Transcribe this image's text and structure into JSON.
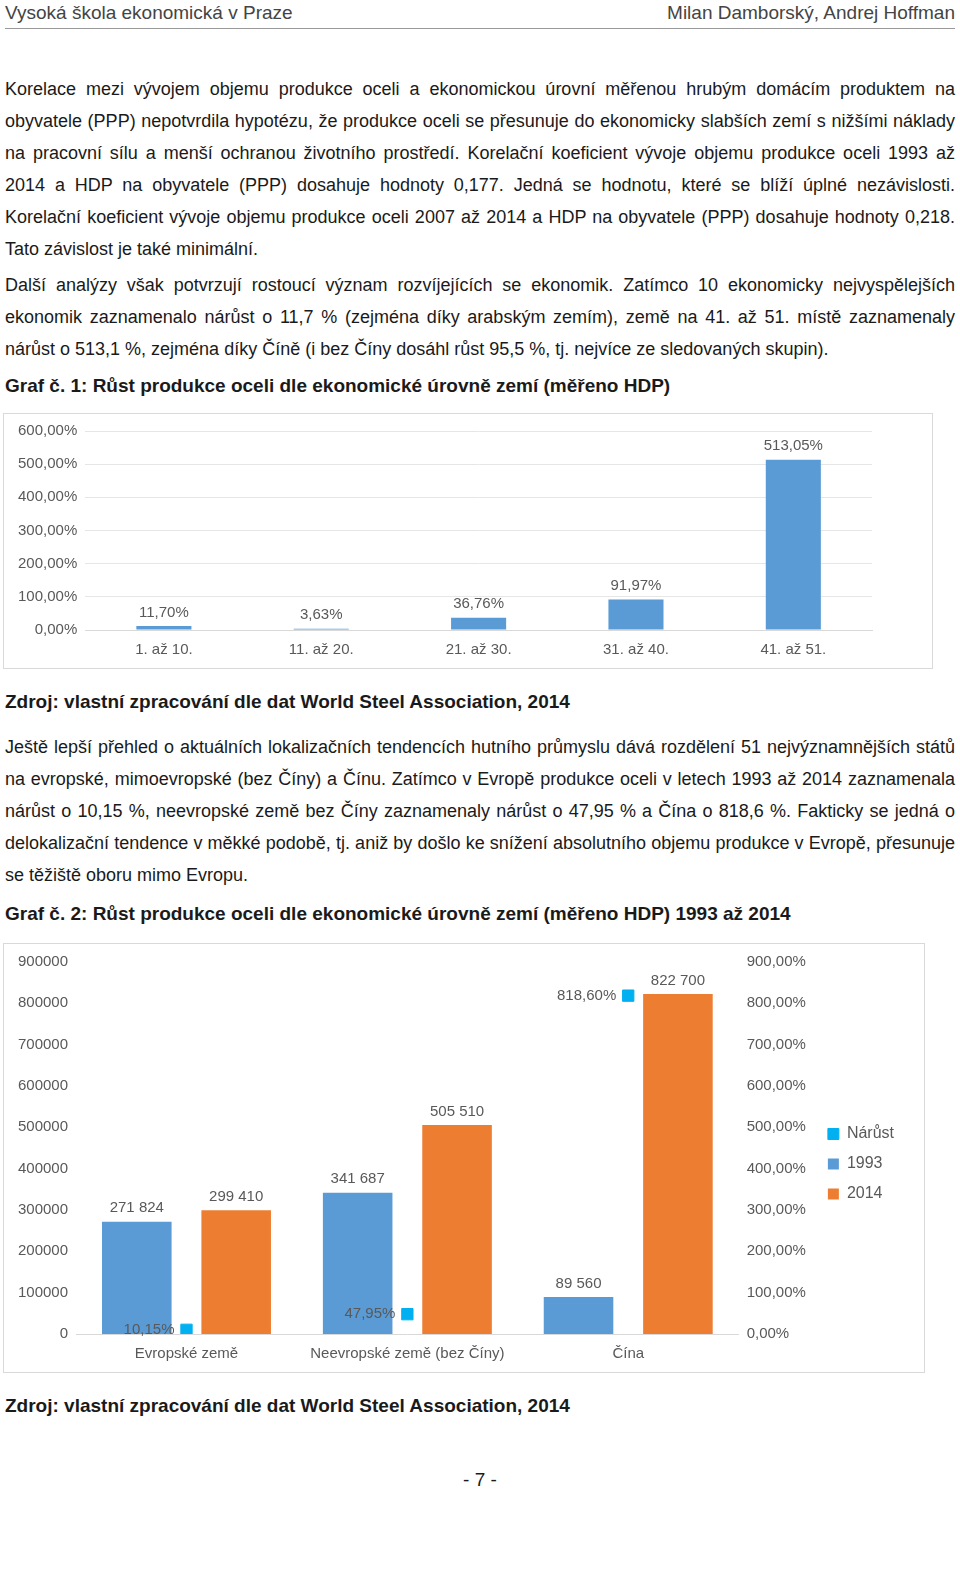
{
  "header": {
    "left": "Vysoká škola ekonomická v Praze",
    "right": "Milan Damborský, Andrej Hoffman"
  },
  "paragraphs_before_graph_1": [
    "Korelace mezi vývojem objemu produkce oceli a ekonomickou úrovní měřenou hrubým domácím produktem na obyvatele (PPP) nepotvrdila hypotézu, že produkce oceli se přesunuje do ekonomicky slabších zemí s nižšími náklady na pracovní sílu a menší ochranou životního prostředí. Korelační koeficient vývoje objemu produkce oceli 1993 až 2014 a HDP na obyvatele (PPP) dosahuje hodnoty 0,177. Jedná se hodnotu, které se blíží úplné nezávislosti. Korelační koeficient vývoje objemu produkce oceli 2007 až 2014 a HDP na obyvatele (PPP) dosahuje hodnoty 0,218. Tato závislost je také minimální.",
    "Další analýzy však potvrzují rostoucí význam rozvíjejících se ekonomik. Zatímco 10 ekonomicky nejvyspělejších ekonomik zaznamenalo nárůst o 11,7 % (zejména díky arabským zemím), země na 41. až 51. místě zaznamenaly nárůst o 513,1 %, zejména díky Číně (i bez Číny dosáhl růst 95,5 %, tj. nejvíce ze sledovaných skupin)."
  ],
  "source_graph_1": "Zdroj: vlastní zpracování dle dat World Steel Association, 2014",
  "paragraph_between_graphs": "Ještě lepší přehled o aktuálních lokalizačních tendencích hutního průmyslu dává rozdělení 51 nejvýznamnějších států na evropské, mimoevropské (bez Číny) a Čínu. Zatímco v Evropě produkce oceli v letech 1993 až 2014 zaznamenala nárůst o 10,15 %, neevropské země bez Číny zaznamenaly nárůst o 47,95 % a Čína o 818,6 %. Fakticky se jedná o delokalizační tendence v měkké podobě, tj. aniž by došlo ke snížení absolutního objemu produkce v Evropě, přesunuje se těžiště oboru mimo Evropu.",
  "source_graph_2": "Zdroj: vlastní zpracování dle dat World Steel Association, 2014",
  "page_number": "- 7 -",
  "chart_data": [
    {
      "type": "bar",
      "title": "Graf č. 1: Růst produkce oceli dle ekonomické úrovně zemí (měřeno HDP)",
      "categories": [
        "1. až 10.",
        "11. až 20.",
        "21. až 30.",
        "31. až 40.",
        "41. až 51."
      ],
      "values": [
        11.7,
        3.63,
        36.76,
        91.97,
        513.05
      ],
      "value_labels": [
        "11,70%",
        "3,63%",
        "36,76%",
        "91,97%",
        "513,05%"
      ],
      "color": "#5b9bd5",
      "ylim": [
        0,
        600
      ],
      "yticks": [
        {
          "value": 0,
          "label": "0,00%"
        },
        {
          "value": 100,
          "label": "100,00%"
        },
        {
          "value": 200,
          "label": "200,00%"
        },
        {
          "value": 300,
          "label": "300,00%"
        },
        {
          "value": 400,
          "label": "400,00%"
        },
        {
          "value": 500,
          "label": "500,00%"
        },
        {
          "value": 600,
          "label": "600,00%"
        }
      ],
      "grid": true,
      "data_labels": true
    },
    {
      "type": "bar",
      "title": "Graf č. 2: Růst produkce oceli dle ekonomické úrovně zemí (měřeno HDP) 1993 až 2014",
      "categories": [
        "Evropské země",
        "Neevropské země (bez Číny)",
        "Čína"
      ],
      "series": [
        {
          "name": "1993",
          "color": "#5b9bd5",
          "values": [
            271824,
            341687,
            89560
          ],
          "value_labels": [
            "271 824",
            "341 687",
            "89 560"
          ]
        },
        {
          "name": "2014",
          "color": "#ed7d31",
          "values": [
            299410,
            505510,
            822700
          ],
          "value_labels": [
            "299 410",
            "505 510",
            "822 700"
          ]
        },
        {
          "name": "Nárůst",
          "type": "line",
          "axis": "y2",
          "marker": "square",
          "line_style": "none",
          "color": "#00b0f0",
          "values": [
            10.15,
            47.95,
            818.6
          ],
          "value_labels": [
            "10,15%",
            "47,95%",
            "818,60%"
          ]
        }
      ],
      "ylim": [
        0,
        900000
      ],
      "yticks": [
        0,
        100000,
        200000,
        300000,
        400000,
        500000,
        600000,
        700000,
        800000,
        900000
      ],
      "y2lim": [
        0,
        900
      ],
      "y2ticks": [
        {
          "value": 0,
          "label": "0,00%"
        },
        {
          "value": 100,
          "label": "100,00%"
        },
        {
          "value": 200,
          "label": "200,00%"
        },
        {
          "value": 300,
          "label": "300,00%"
        },
        {
          "value": 400,
          "label": "400,00%"
        },
        {
          "value": 500,
          "label": "500,00%"
        },
        {
          "value": 600,
          "label": "600,00%"
        },
        {
          "value": 700,
          "label": "700,00%"
        },
        {
          "value": 800,
          "label": "800,00%"
        },
        {
          "value": 900,
          "label": "900,00%"
        }
      ],
      "grid": false,
      "legend": "right",
      "data_labels": true
    }
  ]
}
